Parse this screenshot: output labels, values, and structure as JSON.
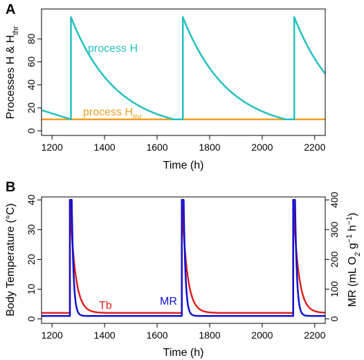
{
  "chart_data": [
    {
      "panel": "A",
      "type": "line",
      "xlabel": "Time (h)",
      "ylabel": "Processes H & H",
      "ylabel_sub": "thr",
      "xlim": [
        1160,
        2240
      ],
      "ylim": [
        -4,
        106
      ],
      "xticks": [
        1200,
        1400,
        1600,
        1800,
        2000,
        2200
      ],
      "yticks": [
        0,
        20,
        40,
        60,
        80
      ],
      "series": [
        {
          "name": "process H",
          "color": "#22c0c0",
          "model": "sawtooth_exp_decay",
          "peak": 99,
          "threshold": 10,
          "rise_times": [
            1272,
            1698,
            2122
          ],
          "start_value": 18,
          "decay_time_constant_h": 171
        },
        {
          "name": "process H",
          "name_sub": "thr",
          "color": "#f0a020",
          "model": "constant",
          "value": 10
        }
      ]
    },
    {
      "panel": "B",
      "type": "line",
      "xlabel": "Time (h)",
      "ylabel_left": "Body Temperature (°C)",
      "ylabel_right_parts": [
        "MR (mL O",
        "2",
        " g",
        "−1",
        " h",
        "−1",
        ")"
      ],
      "xlim": [
        1160,
        2240
      ],
      "ylim_left": [
        -1.5,
        41
      ],
      "ylim_right": [
        -15,
        410
      ],
      "xticks": [
        1200,
        1400,
        1600,
        1800,
        2000,
        2200
      ],
      "yticks_left": [
        0,
        10,
        20,
        30,
        40
      ],
      "yticks_right": [
        0,
        100,
        200,
        300,
        400
      ],
      "series": [
        {
          "name": "Tb",
          "color": "#e02020",
          "axis": "left",
          "baseline": 2,
          "peak": 40,
          "decay_time_constant_h": 20,
          "rise_times": [
            1268,
            1694,
            2118
          ]
        },
        {
          "name": "MR",
          "color": "#1010d0",
          "axis": "right",
          "baseline": 10,
          "peak": 400,
          "hold_h": 7,
          "decay_time_constant_h": 7,
          "rise_times": [
            1268,
            1694,
            2118
          ]
        }
      ]
    }
  ]
}
